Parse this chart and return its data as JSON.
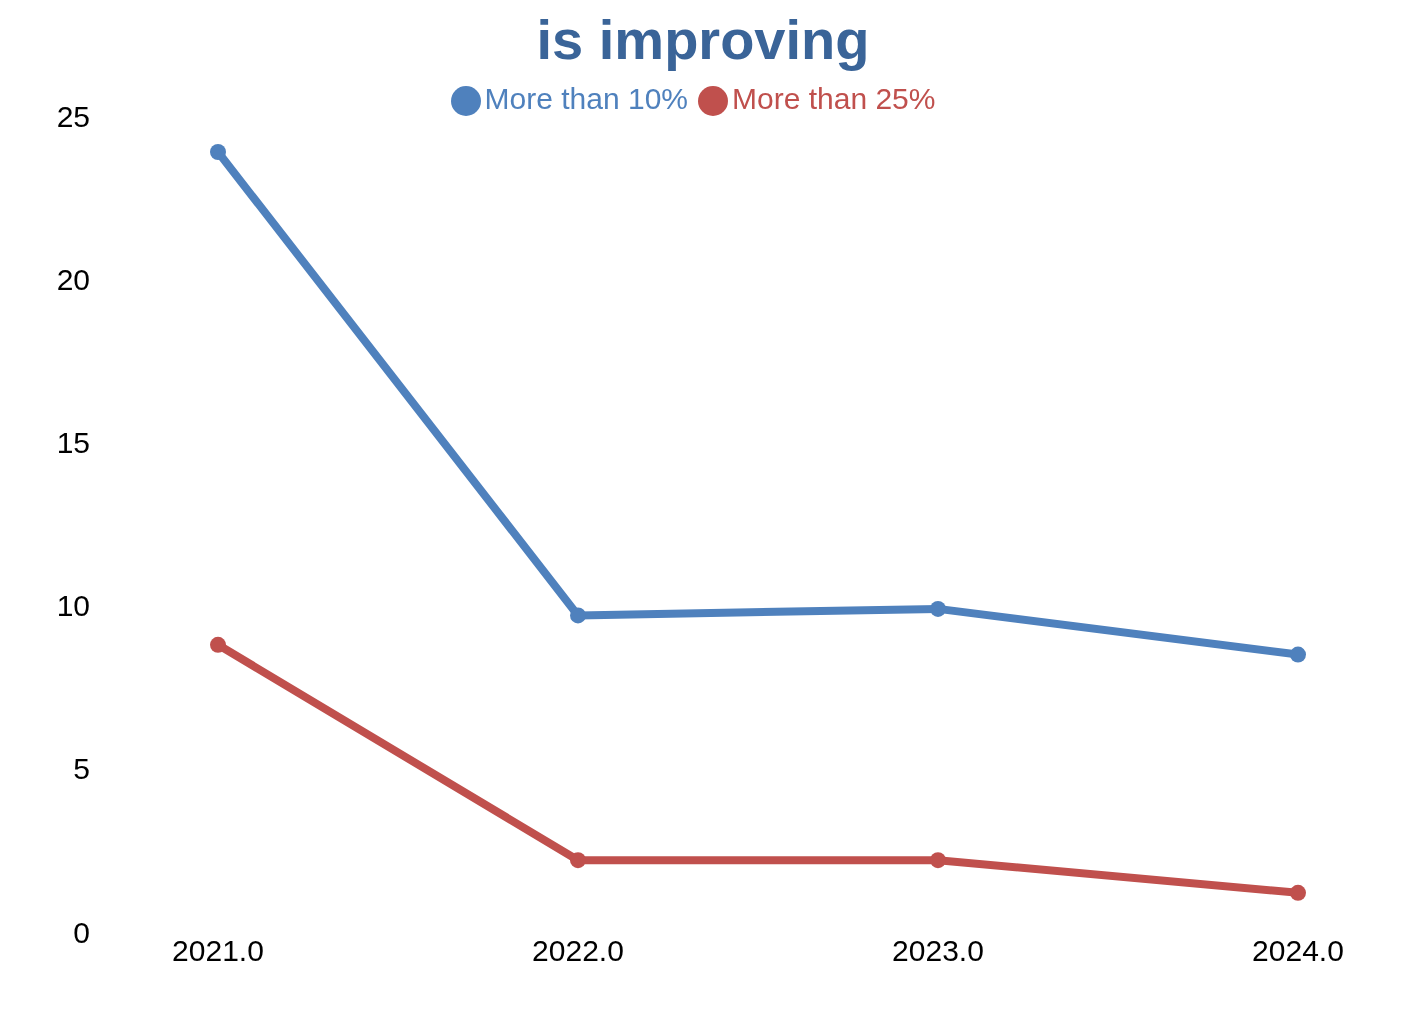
{
  "chart_data": {
    "type": "line",
    "title": "is improving",
    "categories": [
      "2021.0",
      "2022.0",
      "2023.0",
      "2024.0"
    ],
    "series": [
      {
        "name": "More than 10%",
        "color": "#4f81bd",
        "values": [
          23.9,
          9.7,
          9.9,
          8.5
        ]
      },
      {
        "name": "More than 25%",
        "color": "#c0504d",
        "values": [
          8.8,
          2.2,
          2.2,
          1.2
        ]
      }
    ],
    "ylim": [
      0,
      25
    ],
    "yticks": [
      0,
      5,
      10,
      15,
      20,
      25
    ],
    "legend": "top",
    "marker": "circle"
  }
}
